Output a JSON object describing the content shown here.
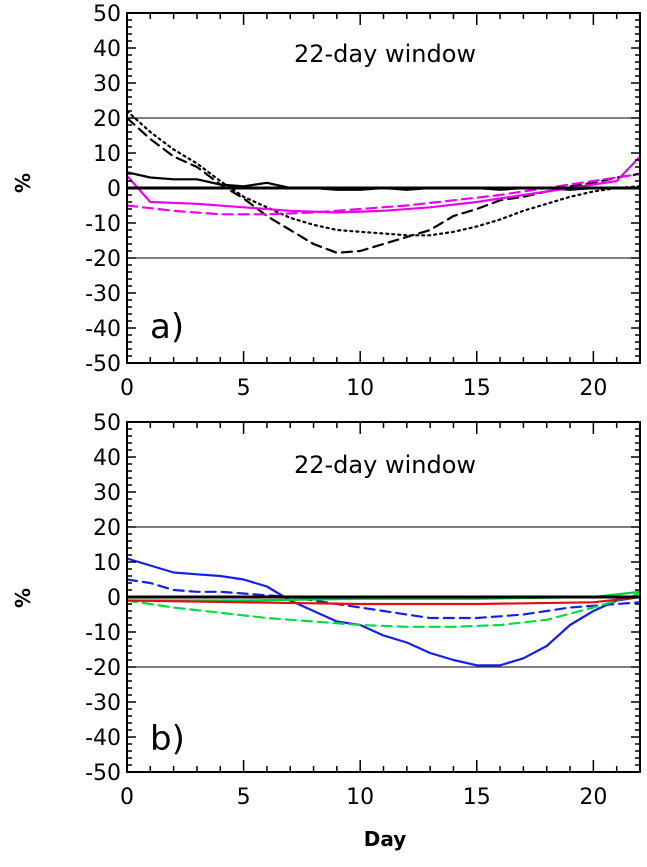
{
  "chart_data": [
    {
      "type": "line",
      "panel_label": "a)",
      "title": "22-day window",
      "xlabel": "",
      "ylabel": "%",
      "xlim": [
        0,
        22
      ],
      "ylim": [
        -50,
        50
      ],
      "x_ticks": [
        0,
        5,
        10,
        15,
        20
      ],
      "y_ticks": [
        50,
        40,
        30,
        20,
        10,
        0,
        -10,
        -20,
        -30,
        -40,
        -50
      ],
      "reference_lines": [
        20,
        -20
      ],
      "zero_line": true,
      "series": [
        {
          "color": "#000000",
          "style": "solid",
          "x": [
            0,
            1,
            2,
            3,
            4,
            5,
            6,
            7,
            8,
            9,
            10,
            11,
            12,
            13,
            14,
            15,
            16,
            17,
            18,
            19,
            20,
            21,
            22
          ],
          "values": [
            4.5,
            3,
            2.5,
            2.5,
            1,
            0.5,
            1.5,
            0,
            0,
            -0.5,
            -0.5,
            0,
            -0.5,
            0,
            0,
            0,
            -0.5,
            0,
            0,
            -0.5,
            0,
            0,
            0
          ]
        },
        {
          "color": "#000000",
          "style": "dashed",
          "x": [
            0,
            1,
            2,
            3,
            4,
            5,
            6,
            7,
            8,
            9,
            10,
            11,
            12,
            13,
            14,
            15,
            16,
            17,
            18,
            19,
            20,
            21,
            22
          ],
          "values": [
            20,
            14,
            9,
            6,
            1,
            -3,
            -8,
            -12,
            -16,
            -18.5,
            -18,
            -16,
            -14,
            -12,
            -8,
            -6,
            -3.5,
            -2.5,
            -1,
            0.5,
            1.5,
            3,
            4
          ]
        },
        {
          "color": "#000000",
          "style": "dotted",
          "x": [
            0,
            1,
            2,
            3,
            4,
            5,
            6,
            7,
            8,
            9,
            10,
            11,
            12,
            13,
            14,
            15,
            16,
            17,
            18,
            19,
            20,
            21,
            22
          ],
          "values": [
            22,
            16,
            11,
            7,
            2,
            -2.5,
            -5.5,
            -8.5,
            -10.5,
            -12,
            -12.5,
            -13,
            -13.5,
            -13.5,
            -12.5,
            -11,
            -9,
            -6.5,
            -4.5,
            -2.5,
            -1,
            0,
            0.5
          ]
        },
        {
          "color": "#ee00ee",
          "style": "solid",
          "x": [
            0,
            1,
            3,
            5,
            7,
            9,
            11,
            13,
            15,
            17,
            19,
            21,
            22
          ],
          "values": [
            3.5,
            -4,
            -4.5,
            -5.5,
            -6.5,
            -7,
            -6.5,
            -5.5,
            -4,
            -2,
            0,
            2,
            9
          ]
        },
        {
          "color": "#ee00ee",
          "style": "dashed",
          "x": [
            0,
            2,
            4,
            6,
            8,
            10,
            12,
            14,
            16,
            18,
            20,
            22
          ],
          "values": [
            -5,
            -6.5,
            -7.5,
            -7.5,
            -7,
            -6,
            -5,
            -3.5,
            -2,
            0,
            2,
            4
          ]
        }
      ]
    },
    {
      "type": "line",
      "panel_label": "b)",
      "title": "22-day window",
      "xlabel": "Day",
      "ylabel": "%",
      "xlim": [
        0,
        22
      ],
      "ylim": [
        -50,
        50
      ],
      "x_ticks": [
        0,
        5,
        10,
        15,
        20
      ],
      "y_ticks": [
        50,
        40,
        30,
        20,
        10,
        0,
        -10,
        -20,
        -30,
        -40,
        -50
      ],
      "reference_lines": [
        20,
        -20
      ],
      "zero_line": true,
      "series": [
        {
          "color": "#1520e0",
          "style": "solid",
          "x": [
            0,
            1,
            2,
            3,
            4,
            5,
            6,
            7,
            8,
            9,
            10,
            11,
            12,
            13,
            14,
            15,
            16,
            17,
            18,
            19,
            20,
            21,
            22
          ],
          "values": [
            11,
            9,
            7,
            6.5,
            6,
            5,
            3,
            -1,
            -4,
            -7,
            -8,
            -11,
            -13,
            -16,
            -18,
            -19.5,
            -19.5,
            -17.5,
            -14,
            -8,
            -4,
            -1,
            0
          ]
        },
        {
          "color": "#1520e0",
          "style": "dashed",
          "x": [
            0,
            1,
            2,
            3,
            4,
            5,
            6,
            7,
            8,
            9,
            10,
            11,
            12,
            13,
            14,
            15,
            16,
            17,
            18,
            19,
            20,
            21,
            22
          ],
          "values": [
            5,
            4,
            2,
            1.5,
            1.5,
            1,
            0.5,
            0,
            -1,
            -2,
            -3,
            -4,
            -5,
            -6,
            -6,
            -6,
            -5.5,
            -5,
            -4,
            -3,
            -2.5,
            -2,
            -1.5
          ]
        },
        {
          "color": "#00cc44",
          "style": "solid",
          "x": [
            0,
            5,
            10,
            15,
            20,
            22
          ],
          "values": [
            -1,
            -1,
            -0.5,
            -0.5,
            0,
            1.5
          ]
        },
        {
          "color": "#00dd44",
          "style": "dashed",
          "x": [
            0,
            2,
            4,
            6,
            8,
            10,
            12,
            14,
            16,
            18,
            20,
            22
          ],
          "values": [
            -1,
            -3,
            -4.5,
            -6,
            -7,
            -8,
            -8.5,
            -8.5,
            -8,
            -6.5,
            -3,
            1
          ]
        },
        {
          "color": "#e01010",
          "style": "solid",
          "x": [
            0,
            5,
            10,
            15,
            20,
            22
          ],
          "values": [
            -1,
            -1.5,
            -2,
            -2,
            -1.5,
            0
          ]
        }
      ]
    }
  ]
}
